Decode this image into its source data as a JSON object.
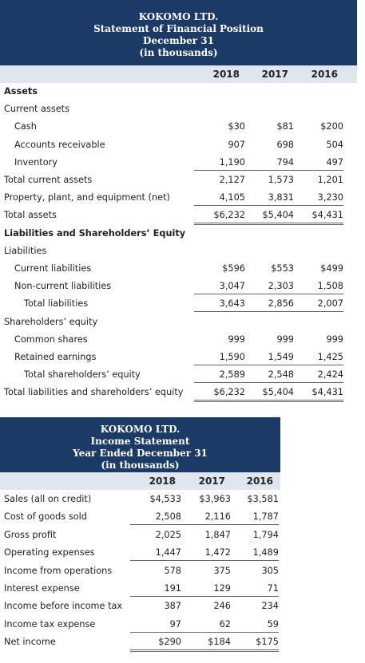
{
  "balance_sheet": {
    "header": [
      "KOKOMO LTD.",
      "Statement of Financial Position",
      "December 31",
      "(in thousands)"
    ],
    "years": [
      "2018",
      "2017",
      "2016"
    ],
    "rows": [
      {
        "label": "Assets",
        "style": "section",
        "values": [
          "",
          "",
          ""
        ]
      },
      {
        "label": "Current assets",
        "style": "plain",
        "values": [
          "",
          "",
          ""
        ]
      },
      {
        "label": "Cash",
        "style": "indent1",
        "values": [
          "$30",
          "$81",
          "$200"
        ]
      },
      {
        "label": "Accounts receivable",
        "style": "indent1",
        "values": [
          "907",
          "698",
          "504"
        ]
      },
      {
        "label": "Inventory",
        "style": "indent1",
        "values": [
          "1,190",
          "794",
          "497"
        ],
        "line": "ul"
      },
      {
        "label": "Total current assets",
        "style": "plain",
        "values": [
          "2,127",
          "1,573",
          "1,201"
        ]
      },
      {
        "label": "Property, plant, and equipment (net)",
        "style": "plain",
        "values": [
          "4,105",
          "3,831",
          "3,230"
        ],
        "line": "ul"
      },
      {
        "label": "Total assets",
        "style": "plain",
        "values": [
          "$6,232",
          "$5,404",
          "$4,431"
        ],
        "line": "dul"
      },
      {
        "label": "Liabilities and Shareholders’ Equity",
        "style": "section",
        "values": [
          "",
          "",
          ""
        ]
      },
      {
        "label": "Liabilities",
        "style": "plain",
        "values": [
          "",
          "",
          ""
        ]
      },
      {
        "label": "Current liabilities",
        "style": "indent1",
        "values": [
          "$596",
          "$553",
          "$499"
        ]
      },
      {
        "label": "Non-current liabilities",
        "style": "indent1",
        "values": [
          "3,047",
          "2,303",
          "1,508"
        ],
        "line": "ul"
      },
      {
        "label": "Total liabilities",
        "style": "indent2",
        "values": [
          "3,643",
          "2,856",
          "2,007"
        ],
        "line": "ul"
      },
      {
        "label": "Shareholders’ equity",
        "style": "plain",
        "values": [
          "",
          "",
          ""
        ]
      },
      {
        "label": "Common shares",
        "style": "indent1",
        "values": [
          "999",
          "999",
          "999"
        ]
      },
      {
        "label": "Retained earnings",
        "style": "indent1",
        "values": [
          "1,590",
          "1,549",
          "1,425"
        ],
        "line": "ul"
      },
      {
        "label": "Total shareholders’ equity",
        "style": "indent2",
        "values": [
          "2,589",
          "2,548",
          "2,424"
        ],
        "line": "ul"
      },
      {
        "label": "Total liabilities and shareholders’ equity",
        "style": "plain",
        "values": [
          "$6,232",
          "$5,404",
          "$4,431"
        ],
        "line": "dul"
      }
    ]
  },
  "income_statement": {
    "header": [
      "KOKOMO LTD.",
      "Income Statement",
      "Year Ended December 31",
      "(in thousands)"
    ],
    "years": [
      "2018",
      "2017",
      "2016"
    ],
    "rows": [
      {
        "label": "Sales (all on credit)",
        "values": [
          "$4,533",
          "$3,963",
          "$3,581"
        ]
      },
      {
        "label": "Cost of goods sold",
        "values": [
          "2,508",
          "2,116",
          "1,787"
        ],
        "line": "ul"
      },
      {
        "label": "Gross profit",
        "values": [
          "2,025",
          "1,847",
          "1,794"
        ]
      },
      {
        "label": "Operating expenses",
        "values": [
          "1,447",
          "1,472",
          "1,489"
        ],
        "line": "ul"
      },
      {
        "label": "Income from operations",
        "values": [
          "578",
          "375",
          "305"
        ]
      },
      {
        "label": "Interest expense",
        "values": [
          "191",
          "129",
          "71"
        ],
        "line": "ul"
      },
      {
        "label": "Income before income tax",
        "values": [
          "387",
          "246",
          "234"
        ]
      },
      {
        "label": "Income tax expense",
        "values": [
          "97",
          "62",
          "59"
        ],
        "line": "ul"
      },
      {
        "label": "Net income",
        "values": [
          "$290",
          "$184",
          "$175"
        ],
        "line": "dul"
      }
    ]
  }
}
